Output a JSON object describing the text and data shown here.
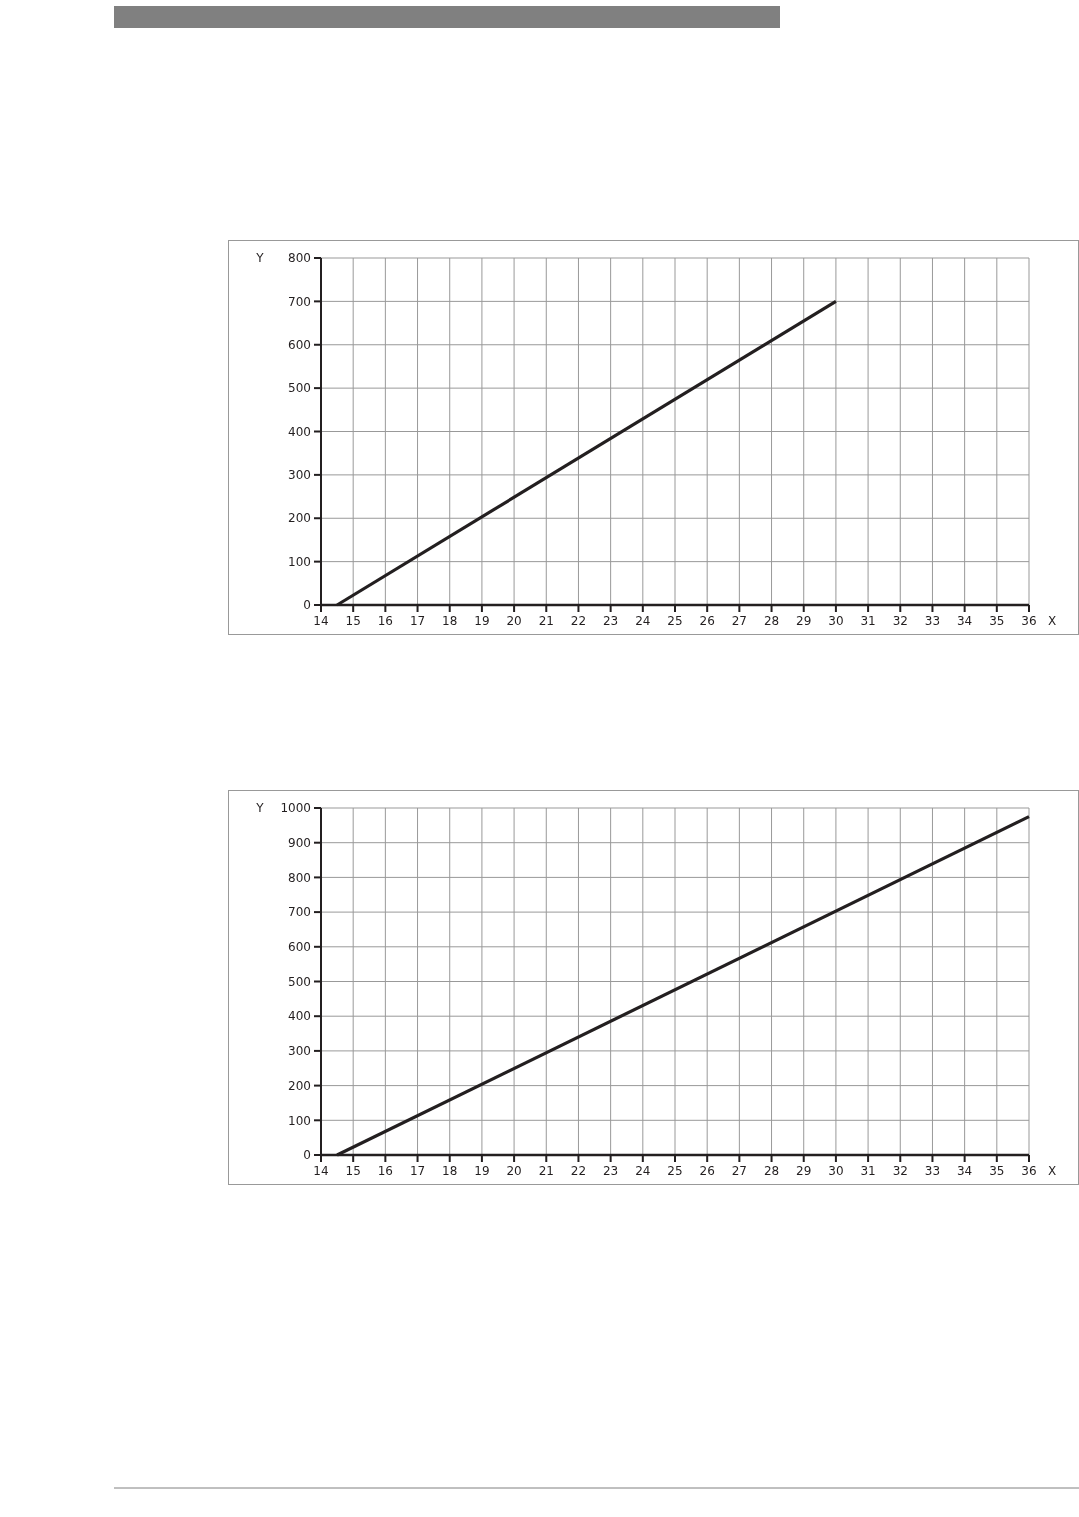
{
  "chart_data": [
    {
      "type": "line",
      "x": [
        14.5,
        30
      ],
      "values": [
        0,
        700
      ],
      "color": "#231f20",
      "xlim": [
        14,
        36
      ],
      "ylim": [
        0,
        800
      ],
      "xticks": [
        14,
        15,
        16,
        17,
        18,
        19,
        20,
        21,
        22,
        23,
        24,
        25,
        26,
        27,
        28,
        29,
        30,
        31,
        32,
        33,
        34,
        35,
        36
      ],
      "yticks": [
        0,
        100,
        200,
        300,
        400,
        500,
        600,
        700,
        800
      ],
      "xlabel": "X",
      "ylabel": "Y",
      "grid": true
    },
    {
      "type": "line",
      "x": [
        14.5,
        36
      ],
      "values": [
        0,
        975
      ],
      "color": "#231f20",
      "xlim": [
        14,
        36
      ],
      "ylim": [
        0,
        1000
      ],
      "xticks": [
        14,
        15,
        16,
        17,
        18,
        19,
        20,
        21,
        22,
        23,
        24,
        25,
        26,
        27,
        28,
        29,
        30,
        31,
        32,
        33,
        34,
        35,
        36
      ],
      "yticks": [
        0,
        100,
        200,
        300,
        400,
        500,
        600,
        700,
        800,
        900,
        1000
      ],
      "xlabel": "X",
      "ylabel": "Y",
      "grid": true
    }
  ]
}
